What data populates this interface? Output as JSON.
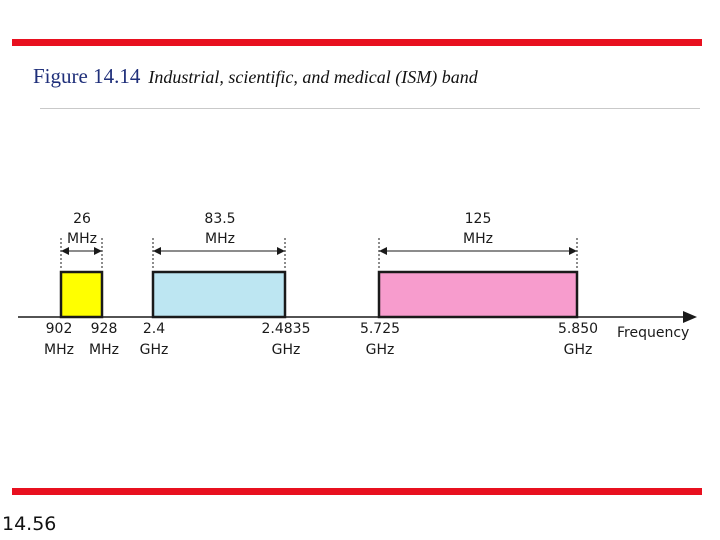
{
  "figure": {
    "number": "Figure 14.14",
    "caption": "Industrial, scientific, and medical (ISM) band"
  },
  "slide_number": "14.56",
  "axis_label": "Frequency",
  "colors": {
    "accent": "#e8101f",
    "band1": "#ffff00",
    "band2": "#bde6f2",
    "band3": "#f79ccd"
  },
  "bands": [
    {
      "width_value": "26",
      "width_unit": "MHz",
      "start_value": "902",
      "start_unit": "MHz",
      "end_value": "928",
      "end_unit": "MHz"
    },
    {
      "width_value": "83.5",
      "width_unit": "MHz",
      "start_value": "2.4",
      "start_unit": "GHz",
      "end_value": "2.4835",
      "end_unit": "GHz"
    },
    {
      "width_value": "125",
      "width_unit": "MHz",
      "start_value": "5.725",
      "start_unit": "GHz",
      "end_value": "5.850",
      "end_unit": "GHz"
    }
  ]
}
